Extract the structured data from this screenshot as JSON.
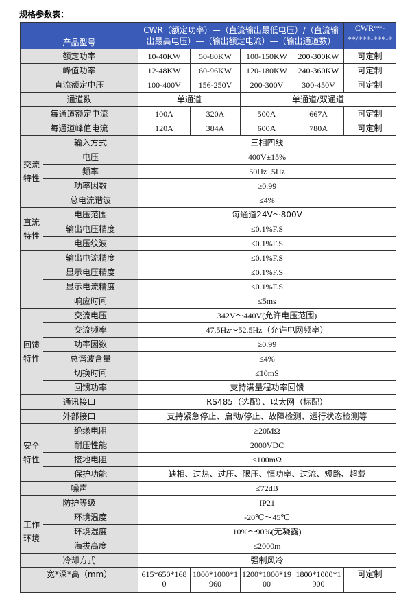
{
  "title": "规格参数表：",
  "colors": {
    "header_bg": "#3a5bb8",
    "label_bg": "#e0e0e0"
  },
  "header": {
    "label": "产品型号",
    "desc": "CWR（额定功率）—（直流输出最低电压）/（直流输出最高电压）—（输出额定电流）—（输出通道数）",
    "last": "CWR**-**/***-***-*"
  },
  "model_rows": [
    {
      "label": "额定功率",
      "values": [
        "10-40KW",
        "50-80KW",
        "100-150KW",
        "200-300KW",
        "可定制"
      ]
    },
    {
      "label": "峰值功率",
      "values": [
        "12-48KW",
        "60-96KW",
        "120-180KW",
        "240-360KW",
        "可定制"
      ]
    },
    {
      "label": "直流额定电压",
      "values": [
        "100-400V",
        "156-250V",
        "200-300V",
        "300-450V",
        "可定制"
      ]
    },
    {
      "label": "通道数",
      "values": [
        "单通道",
        "单通道/双通道"
      ]
    },
    {
      "label": "每通道额定电流",
      "values": [
        "100A",
        "320A",
        "500A",
        "667A",
        "可定制"
      ]
    },
    {
      "label": "每通道峰值电流",
      "values": [
        "120A",
        "384A",
        "600A",
        "780A",
        "可定制"
      ]
    }
  ],
  "sections": [
    {
      "group": "交流特性",
      "items": [
        {
          "label": "输入方式",
          "value": "三相四线"
        },
        {
          "label": "电压",
          "value": "400V±15%"
        },
        {
          "label": "频率",
          "value": "50Hz±5Hz"
        },
        {
          "label": "功率因数",
          "value": "≥0.99"
        },
        {
          "label": "总电流谐波",
          "value": "≤4%"
        }
      ]
    },
    {
      "group": "直流特性",
      "items": [
        {
          "label": "电压范围",
          "value": "每通道24V～800V"
        },
        {
          "label": "输出电压精度",
          "value": "≤0.1%F.S"
        },
        {
          "label": "电压纹波",
          "value": "≤0.1%F.S"
        }
      ]
    },
    {
      "group": "",
      "items": [
        {
          "label": "输出电流精度",
          "value": "≤0.1%F.S"
        },
        {
          "label": "显示电压精度",
          "value": "≤0.1%F.S"
        },
        {
          "label": "显示电流精度",
          "value": "≤0.1%F.S"
        },
        {
          "label": "响应时间",
          "value": "≤5ms"
        }
      ]
    },
    {
      "group": "回馈特性",
      "items": [
        {
          "label": "交流电压",
          "value": "342V～440V(允许电压范围)"
        },
        {
          "label": "交流频率",
          "value": "47.5Hz～52.5Hz（允许电网频率）"
        },
        {
          "label": "功率因数",
          "value": "≥0.99"
        },
        {
          "label": "总谐波含量",
          "value": "≤4%"
        },
        {
          "label": "切换时间",
          "value": "≤10mS"
        },
        {
          "label": "回馈功率",
          "value": "支持满量程功率回馈"
        }
      ]
    },
    {
      "single": true,
      "label": "通讯接口",
      "value": "RS485（选配）、以太网（标配）"
    },
    {
      "single": true,
      "label": "外部接口",
      "value": "支持紧急停止、启动/停止、故障检测、运行状态检测等"
    },
    {
      "group": "安全特性",
      "items": [
        {
          "label": "绝缘电阻",
          "value": "≥20MΩ"
        },
        {
          "label": "耐压性能",
          "value": "2000VDC"
        },
        {
          "label": "接地电阻",
          "value": "≤100mΩ"
        },
        {
          "label": "保护功能",
          "value": "缺相、过热、过压、限压、恒功率、过流、短路、超载"
        }
      ]
    },
    {
      "single": true,
      "label": "噪声",
      "value": "≤72dB"
    },
    {
      "single": true,
      "label": "防护等级",
      "value": "IP21"
    },
    {
      "group": "工作环境",
      "items": [
        {
          "label": "环境温度",
          "value": "-20℃～45℃"
        },
        {
          "label": "环境湿度",
          "value": "10%～90%(无凝露)"
        },
        {
          "label": "海拔高度",
          "value": "≤2000m"
        }
      ]
    },
    {
      "single": true,
      "label": "冷却方式",
      "value": "强制风冷"
    }
  ],
  "dimensions": {
    "label": "宽*深*高（mm）",
    "values": [
      "615*650*1680",
      "1000*1000*1960",
      "1200*1000*1900",
      "1800*1000*1900",
      "可定制"
    ]
  }
}
